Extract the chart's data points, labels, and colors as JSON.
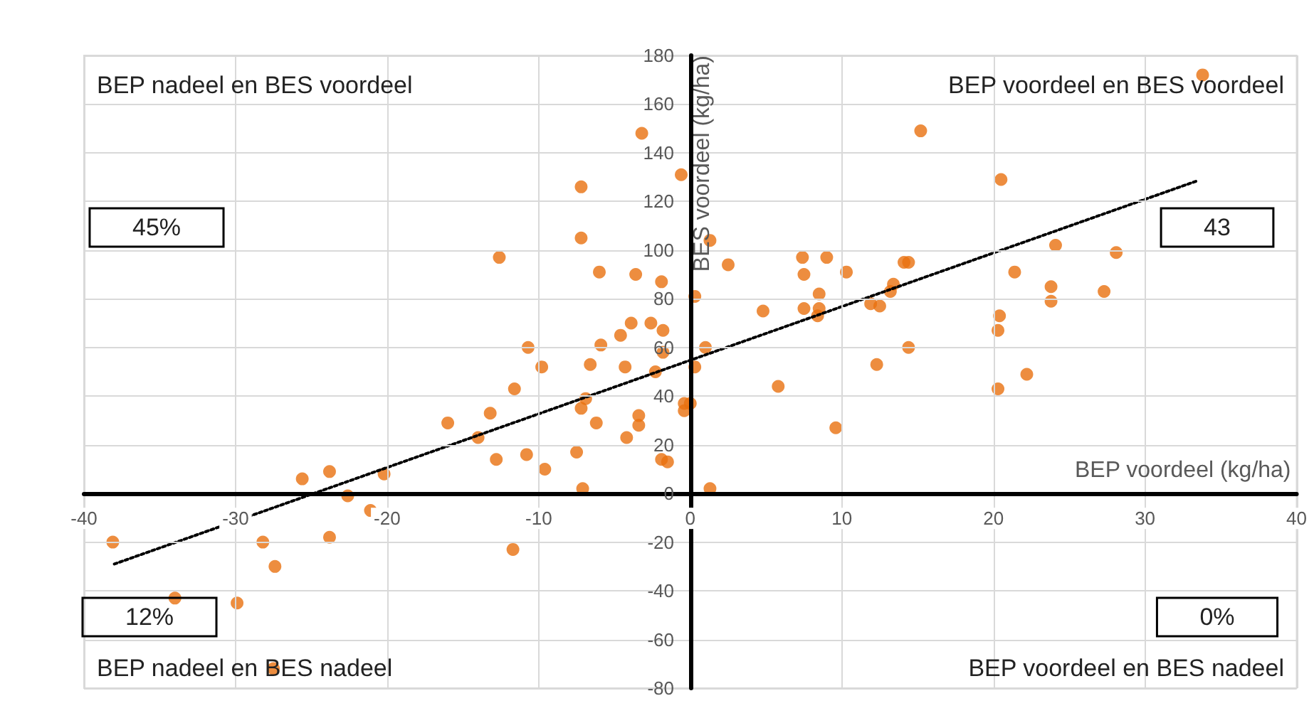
{
  "chart_data": {
    "type": "scatter",
    "xlabel": "BEP voordeel (kg/ha)",
    "ylabel": "BES voordeel (kg/ha)",
    "xlim": [
      -40,
      40
    ],
    "xticks": [
      -40,
      -30,
      -20,
      -10,
      0,
      10,
      20,
      30,
      40
    ],
    "ylim": [
      -80,
      180
    ],
    "yticks": [
      -80,
      -60,
      -40,
      -20,
      0,
      20,
      40,
      60,
      80,
      100,
      120,
      140,
      160,
      180
    ],
    "grid": true,
    "marker": "circle",
    "annotations": [
      "BEP nadeel en BES voordeel",
      "45%",
      "BEP voordeel en BES voordeel",
      "43",
      "12%",
      "BEP nadeel en BES nadeel",
      "0%",
      "BEP voordeel en BES nadeel"
    ],
    "series": [
      {
        "color": "#e8700f",
        "x": [
          -38.1,
          -34,
          -29.9,
          -28.2,
          -27.4,
          -27.5,
          -25.6,
          -23.8,
          -23.8,
          -22.6,
          -21.1,
          -20.2,
          -16,
          -14,
          -13.2,
          -12.6,
          -12.8,
          -11.6,
          -11.7,
          -10.7,
          -10.8,
          -9.6,
          -9.8,
          -7.2,
          -7.2,
          -7.5,
          -7.1,
          -7.2,
          -6.9,
          -6.6,
          -6,
          -5.9,
          -6.2,
          -4.6,
          -3.9,
          -4.3,
          -4.2,
          -3.4,
          -3.4,
          -3.2,
          -3.6,
          -2.6,
          -1.9,
          -1.8,
          -1.8,
          -2.3,
          -1.9,
          -1.5,
          -0.6,
          -0.4,
          -0.4,
          0,
          0.3,
          1.3,
          2.5,
          1,
          0.3,
          1.3,
          4.8,
          5.8,
          7.4,
          7.5,
          7.5,
          8.4,
          8.5,
          8.5,
          9,
          10.3,
          9.6,
          11.9,
          12.5,
          12.3,
          13.2,
          13.4,
          14.1,
          14.4,
          14.4,
          15.2,
          20.5,
          20.4,
          20.3,
          20.3,
          21.4,
          22.2,
          24.1,
          23.8,
          23.8,
          27.3,
          28.1,
          33.8
        ],
        "values": [
          -20,
          -43,
          -45,
          -20,
          -30,
          -72,
          6,
          9,
          -18,
          -1,
          -7,
          8,
          29,
          23,
          33,
          97,
          14,
          43,
          -23,
          60,
          16,
          10,
          52,
          126,
          105,
          17,
          2,
          35,
          39,
          53,
          91,
          61,
          29,
          65,
          70,
          52,
          23,
          32,
          28,
          148,
          90,
          70,
          87,
          67,
          58,
          50,
          14,
          13,
          131,
          37,
          34,
          37,
          81,
          104,
          94,
          60,
          52,
          2,
          75,
          44,
          97,
          90,
          76,
          73,
          82,
          76,
          97,
          91,
          27,
          78,
          77,
          53,
          83,
          86,
          95,
          95,
          60,
          149,
          129,
          73,
          67,
          43,
          91,
          49,
          102,
          85,
          79,
          83,
          99,
          172
        ]
      },
      {
        "type": "line",
        "color": "#000000",
        "marker": "none",
        "line_style": "dotted",
        "x": [
          -38,
          33.5
        ],
        "values": [
          -29,
          128.6
        ]
      }
    ]
  }
}
